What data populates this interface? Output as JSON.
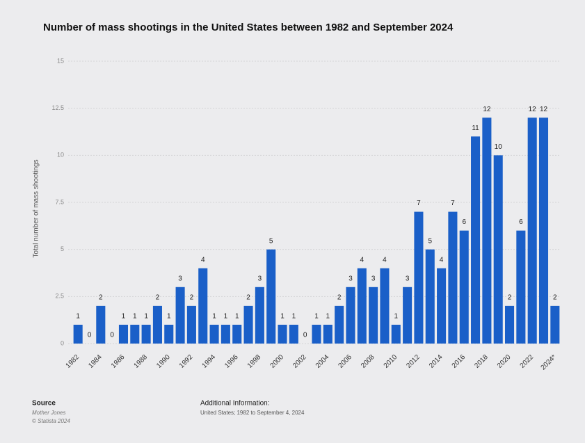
{
  "chart_data": {
    "type": "bar",
    "title": "Number of mass shootings in the United States between 1982 and September 2024",
    "y_axis_label": "Total number of mass shootings",
    "categories": [
      "1982",
      null,
      "1984",
      null,
      "1986",
      null,
      "1988",
      null,
      "1990",
      null,
      "1992",
      null,
      "1994",
      null,
      "1996",
      null,
      "1998",
      null,
      "2000",
      null,
      "2002",
      null,
      "2004",
      null,
      "2006",
      null,
      "2008",
      null,
      "2010",
      null,
      "2012",
      null,
      "2014",
      null,
      "2016",
      null,
      "2018",
      null,
      "2020",
      null,
      "2022",
      null,
      "2024*"
    ],
    "values": [
      1,
      0,
      2,
      0,
      1,
      1,
      1,
      2,
      1,
      3,
      2,
      4,
      1,
      1,
      1,
      2,
      3,
      5,
      1,
      1,
      0,
      1,
      1,
      2,
      3,
      4,
      3,
      4,
      1,
      3,
      7,
      5,
      4,
      7,
      6,
      11,
      12,
      10,
      2,
      6,
      12,
      12,
      2
    ],
    "color": "#1a5fc8",
    "ylim": [
      0,
      15
    ],
    "yticks": [
      0,
      2.5,
      5,
      7.5,
      10,
      12.5,
      15
    ],
    "grid": true,
    "source_heading": "Source",
    "source_lines": [
      "Mother Jones",
      "© Statista 2024"
    ],
    "info_heading": "Additional Information:",
    "info_text": "United States; 1982 to September 4, 2024"
  }
}
